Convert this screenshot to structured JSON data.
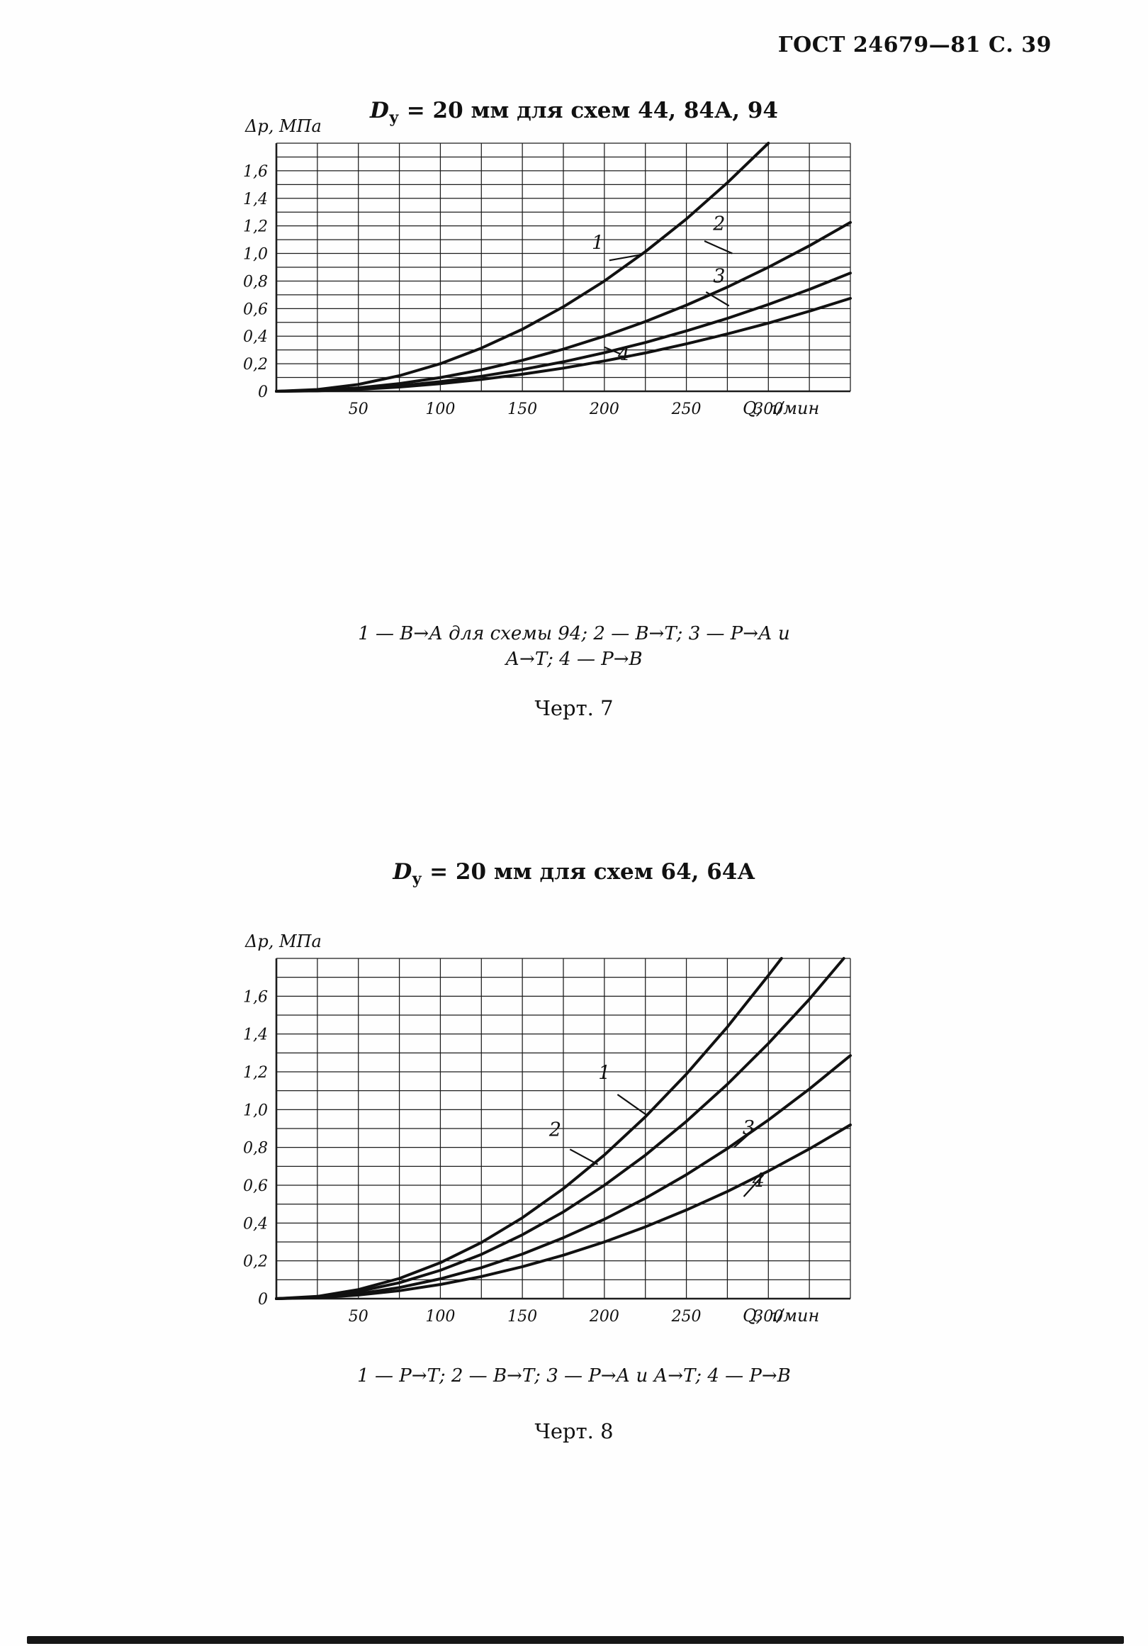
{
  "header": "ГОСТ 24679—81 С. 39",
  "fig7": {
    "title": {
      "d": "D",
      "sub": "у",
      "rest": " = 20 мм для схем 44, 84А, 94"
    },
    "caption_line1": "1 — В→А для схемы 94; 2 — В→Т; 3 — Р→А и",
    "caption_line2": "А→Т; 4 — Р→В",
    "fig_label": "Черт. 7"
  },
  "fig8": {
    "title": {
      "d": "D",
      "sub": "у",
      "rest": " = 20 мм для схем 64, 64А"
    },
    "caption_line1": "1 — Р→Т; 2 — В→Т; 3 — Р→А и А→Т; 4 — Р→В",
    "fig_label": "Черт. 8"
  },
  "chart_data": [
    {
      "type": "line",
      "title": "Dу = 20 мм для схем 44, 84А, 94",
      "xlabel": "Q, л/мин",
      "ylabel": "Δp, МПа",
      "xlim": [
        0,
        350
      ],
      "ylim": [
        0,
        1.8
      ],
      "x_minor": 25,
      "y_minor": 0.1,
      "grid": true,
      "x_ticks": [
        {
          "v": 50,
          "label": "50"
        },
        {
          "v": 100,
          "label": "100"
        },
        {
          "v": 150,
          "label": "150"
        },
        {
          "v": 200,
          "label": "200"
        },
        {
          "v": 250,
          "label": "250"
        },
        {
          "v": 300,
          "label": "300"
        }
      ],
      "y_ticks": [
        {
          "v": 0,
          "label": "0"
        },
        {
          "v": 0.2,
          "label": "0,2"
        },
        {
          "v": 0.4,
          "label": "0,4"
        },
        {
          "v": 0.6,
          "label": "0,6"
        },
        {
          "v": 0.8,
          "label": "0,8"
        },
        {
          "v": 1.0,
          "label": "1,0"
        },
        {
          "v": 1.2,
          "label": "1,2"
        },
        {
          "v": 1.4,
          "label": "1,4"
        },
        {
          "v": 1.6,
          "label": "1,6"
        }
      ],
      "legend": [
        {
          "curve": "1",
          "route": "В→А для схемы 94"
        },
        {
          "curve": "2",
          "route": "В→Т"
        },
        {
          "curve": "3",
          "route": "Р→А и А→Т"
        },
        {
          "curve": "4",
          "route": "Р→В"
        }
      ],
      "series": [
        {
          "name": "1",
          "points": [
            [
              0,
              0
            ],
            [
              25,
              0.013
            ],
            [
              50,
              0.05
            ],
            [
              75,
              0.113
            ],
            [
              100,
              0.2
            ],
            [
              125,
              0.313
            ],
            [
              150,
              0.45
            ],
            [
              175,
              0.613
            ],
            [
              200,
              0.8
            ],
            [
              225,
              1.013
            ],
            [
              250,
              1.25
            ],
            [
              275,
              1.513
            ],
            [
              300,
              1.8
            ]
          ]
        },
        {
          "name": "2",
          "points": [
            [
              0,
              0
            ],
            [
              25,
              0.006
            ],
            [
              50,
              0.025
            ],
            [
              75,
              0.056
            ],
            [
              100,
              0.1
            ],
            [
              125,
              0.156
            ],
            [
              150,
              0.225
            ],
            [
              175,
              0.306
            ],
            [
              200,
              0.4
            ],
            [
              225,
              0.506
            ],
            [
              250,
              0.625
            ],
            [
              275,
              0.756
            ],
            [
              300,
              0.9
            ],
            [
              325,
              1.056
            ],
            [
              350,
              1.225
            ]
          ]
        },
        {
          "name": "3",
          "points": [
            [
              0,
              0
            ],
            [
              25,
              0.004
            ],
            [
              50,
              0.018
            ],
            [
              75,
              0.039
            ],
            [
              100,
              0.07
            ],
            [
              125,
              0.109
            ],
            [
              150,
              0.158
            ],
            [
              175,
              0.214
            ],
            [
              200,
              0.28
            ],
            [
              225,
              0.354
            ],
            [
              250,
              0.438
            ],
            [
              275,
              0.529
            ],
            [
              300,
              0.63
            ],
            [
              325,
              0.739
            ],
            [
              350,
              0.858
            ]
          ]
        },
        {
          "name": "4",
          "points": [
            [
              0,
              0
            ],
            [
              25,
              0.003
            ],
            [
              50,
              0.014
            ],
            [
              75,
              0.031
            ],
            [
              100,
              0.055
            ],
            [
              125,
              0.086
            ],
            [
              150,
              0.124
            ],
            [
              175,
              0.168
            ],
            [
              200,
              0.22
            ],
            [
              225,
              0.278
            ],
            [
              250,
              0.344
            ],
            [
              275,
              0.416
            ],
            [
              300,
              0.495
            ],
            [
              325,
              0.581
            ],
            [
              350,
              0.674
            ]
          ]
        }
      ],
      "curve_labels": [
        {
          "text": "1",
          "x": 196,
          "y": 1.03,
          "leader": [
            203,
            0.95,
            222,
            0.99
          ]
        },
        {
          "text": "2",
          "x": 270,
          "y": 1.17,
          "leader": [
            261,
            1.09,
            278,
            1.0
          ]
        },
        {
          "text": "3",
          "x": 270,
          "y": 0.79,
          "leader": [
            262,
            0.72,
            276,
            0.62
          ]
        },
        {
          "text": "4",
          "x": 212,
          "y": 0.225,
          "leader": [
            200,
            0.32,
            210,
            0.27
          ]
        }
      ]
    },
    {
      "type": "line",
      "title": "Dу = 20 мм для схем 64, 64А",
      "xlabel": "Q, л/мин",
      "ylabel": "Δp, МПа",
      "xlim": [
        0,
        350
      ],
      "ylim": [
        0,
        1.8
      ],
      "x_minor": 25,
      "y_minor": 0.1,
      "grid": true,
      "x_ticks": [
        {
          "v": 50,
          "label": "50"
        },
        {
          "v": 100,
          "label": "100"
        },
        {
          "v": 150,
          "label": "150"
        },
        {
          "v": 200,
          "label": "200"
        },
        {
          "v": 250,
          "label": "250"
        },
        {
          "v": 300,
          "label": "300"
        }
      ],
      "y_ticks": [
        {
          "v": 0,
          "label": "0"
        },
        {
          "v": 0.2,
          "label": "0,2"
        },
        {
          "v": 0.4,
          "label": "0,4"
        },
        {
          "v": 0.6,
          "label": "0,6"
        },
        {
          "v": 0.8,
          "label": "0,8"
        },
        {
          "v": 1.0,
          "label": "1,0"
        },
        {
          "v": 1.2,
          "label": "1,2"
        },
        {
          "v": 1.4,
          "label": "1,4"
        },
        {
          "v": 1.6,
          "label": "1,6"
        }
      ],
      "legend": [
        {
          "curve": "1",
          "route": "Р→Т"
        },
        {
          "curve": "2",
          "route": "В→Т"
        },
        {
          "curve": "3",
          "route": "Р→А и А→Т"
        },
        {
          "curve": "4",
          "route": "Р→В"
        }
      ],
      "series": [
        {
          "name": "1",
          "points": [
            [
              0,
              0
            ],
            [
              25,
              0.012
            ],
            [
              50,
              0.048
            ],
            [
              75,
              0.107
            ],
            [
              100,
              0.19
            ],
            [
              125,
              0.297
            ],
            [
              150,
              0.428
            ],
            [
              175,
              0.582
            ],
            [
              200,
              0.76
            ],
            [
              225,
              0.962
            ],
            [
              250,
              1.188
            ],
            [
              275,
              1.437
            ],
            [
              300,
              1.71
            ],
            [
              308,
              1.8
            ]
          ]
        },
        {
          "name": "2",
          "points": [
            [
              0,
              0
            ],
            [
              25,
              0.009
            ],
            [
              50,
              0.038
            ],
            [
              75,
              0.084
            ],
            [
              100,
              0.15
            ],
            [
              125,
              0.234
            ],
            [
              150,
              0.338
            ],
            [
              175,
              0.459
            ],
            [
              200,
              0.6
            ],
            [
              225,
              0.759
            ],
            [
              250,
              0.938
            ],
            [
              275,
              1.134
            ],
            [
              300,
              1.35
            ],
            [
              325,
              1.584
            ],
            [
              346,
              1.8
            ]
          ]
        },
        {
          "name": "3",
          "points": [
            [
              0,
              0
            ],
            [
              25,
              0.007
            ],
            [
              50,
              0.026
            ],
            [
              75,
              0.059
            ],
            [
              100,
              0.105
            ],
            [
              125,
              0.164
            ],
            [
              150,
              0.236
            ],
            [
              175,
              0.322
            ],
            [
              200,
              0.42
            ],
            [
              225,
              0.531
            ],
            [
              250,
              0.656
            ],
            [
              275,
              0.794
            ],
            [
              300,
              0.945
            ],
            [
              325,
              1.109
            ],
            [
              350,
              1.286
            ]
          ]
        },
        {
          "name": "4",
          "points": [
            [
              0,
              0
            ],
            [
              25,
              0.005
            ],
            [
              50,
              0.019
            ],
            [
              75,
              0.042
            ],
            [
              100,
              0.075
            ],
            [
              125,
              0.117
            ],
            [
              150,
              0.169
            ],
            [
              175,
              0.23
            ],
            [
              200,
              0.3
            ],
            [
              225,
              0.38
            ],
            [
              250,
              0.469
            ],
            [
              275,
              0.567
            ],
            [
              300,
              0.675
            ],
            [
              325,
              0.792
            ],
            [
              350,
              0.919
            ]
          ]
        }
      ],
      "curve_labels": [
        {
          "text": "1",
          "x": 200,
          "y": 1.16,
          "leader": [
            208,
            1.08,
            226,
            0.97
          ]
        },
        {
          "text": "2",
          "x": 170,
          "y": 0.86,
          "leader": [
            179,
            0.79,
            196,
            0.71
          ]
        },
        {
          "text": "3",
          "x": 288,
          "y": 0.87,
          "leader": [
            279,
            0.8,
            292,
            0.9
          ]
        },
        {
          "text": "4",
          "x": 294,
          "y": 0.59,
          "leader": [
            285,
            0.54,
            297,
            0.655
          ]
        }
      ]
    }
  ]
}
